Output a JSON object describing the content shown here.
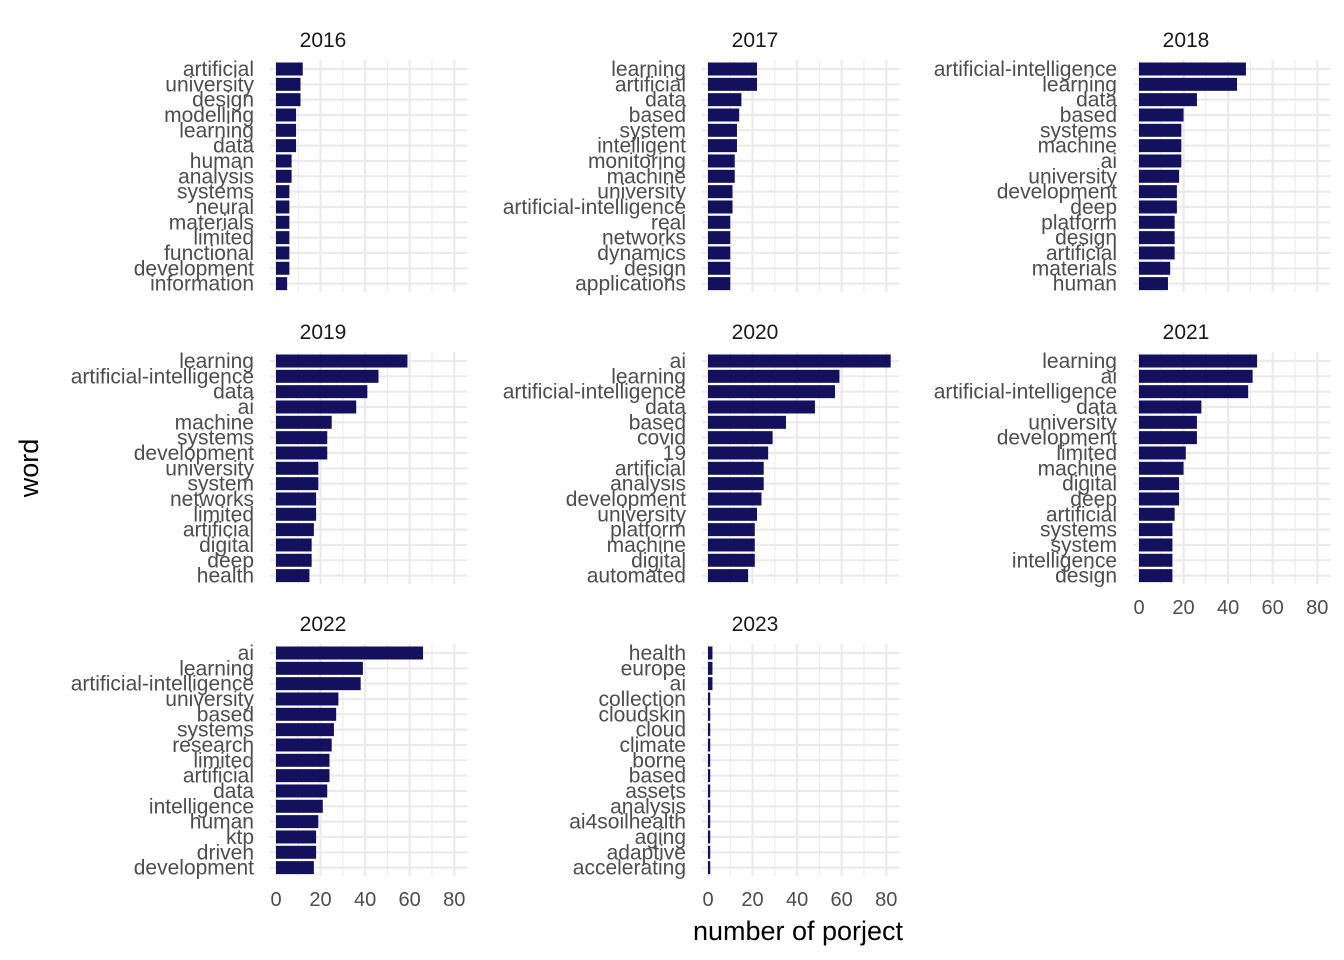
{
  "chart_data": {
    "type": "bar",
    "orientation": "horizontal",
    "xlabel": "number of porject",
    "ylabel": "word",
    "xlim": [
      0,
      85
    ],
    "x_ticks": [
      0,
      20,
      40,
      60,
      80
    ],
    "x_tick_labels": [
      "0",
      "20",
      "40",
      "60",
      "80"
    ],
    "bar_color": "#13105e",
    "grid": true,
    "facets": [
      {
        "title": "2016",
        "categories": [
          "artificial",
          "university",
          "design",
          "modelling",
          "learning",
          "data",
          "human",
          "analysis",
          "systems",
          "neural",
          "materials",
          "limited",
          "functional",
          "development",
          "information"
        ],
        "values": [
          12,
          11,
          11,
          9,
          9,
          9,
          7,
          7,
          6,
          6,
          6,
          6,
          6,
          6,
          5
        ]
      },
      {
        "title": "2017",
        "categories": [
          "learning",
          "artificial",
          "data",
          "based",
          "system",
          "intelligent",
          "monitoring",
          "machine",
          "university",
          "artificial-intelligence",
          "real",
          "networks",
          "dynamics",
          "design",
          "applications"
        ],
        "values": [
          22,
          22,
          15,
          14,
          13,
          13,
          12,
          12,
          11,
          11,
          10,
          10,
          10,
          10,
          10
        ]
      },
      {
        "title": "2018",
        "categories": [
          "artificial-intelligence",
          "learning",
          "data",
          "based",
          "systems",
          "machine",
          "ai",
          "university",
          "development",
          "deep",
          "platform",
          "design",
          "artificial",
          "materials",
          "human"
        ],
        "values": [
          48,
          44,
          26,
          20,
          19,
          19,
          19,
          18,
          17,
          17,
          16,
          16,
          16,
          14,
          13
        ]
      },
      {
        "title": "2019",
        "categories": [
          "learning",
          "artificial-intelligence",
          "data",
          "ai",
          "machine",
          "systems",
          "development",
          "university",
          "system",
          "networks",
          "limited",
          "artificial",
          "digital",
          "deep",
          "health"
        ],
        "values": [
          59,
          46,
          41,
          36,
          25,
          23,
          23,
          19,
          19,
          18,
          18,
          17,
          16,
          16,
          15
        ]
      },
      {
        "title": "2020",
        "categories": [
          "ai",
          "learning",
          "artificial-intelligence",
          "data",
          "based",
          "covid",
          "19",
          "artificial",
          "analysis",
          "development",
          "university",
          "platform",
          "machine",
          "digital",
          "automated"
        ],
        "values": [
          82,
          59,
          57,
          48,
          35,
          29,
          27,
          25,
          25,
          24,
          22,
          21,
          21,
          21,
          18
        ]
      },
      {
        "title": "2021",
        "categories": [
          "learning",
          "ai",
          "artificial-intelligence",
          "data",
          "university",
          "development",
          "limited",
          "machine",
          "digital",
          "deep",
          "artificial",
          "systems",
          "system",
          "intelligence",
          "design"
        ],
        "values": [
          53,
          51,
          49,
          28,
          26,
          26,
          21,
          20,
          18,
          18,
          16,
          15,
          15,
          15,
          15
        ]
      },
      {
        "title": "2022",
        "categories": [
          "ai",
          "learning",
          "artificial-intelligence",
          "university",
          "based",
          "systems",
          "research",
          "limited",
          "artificial",
          "data",
          "intelligence",
          "human",
          "ktp",
          "driven",
          "development"
        ],
        "values": [
          66,
          39,
          38,
          28,
          27,
          26,
          25,
          24,
          24,
          23,
          21,
          19,
          18,
          18,
          17
        ]
      },
      {
        "title": "2023",
        "categories": [
          "health",
          "europe",
          "ai",
          "collection",
          "cloudskin",
          "cloud",
          "climate",
          "borne",
          "based",
          "assets",
          "analysis",
          "ai4soilhealth",
          "aging",
          "adaptive",
          "accelerating"
        ],
        "values": [
          2,
          2,
          2,
          1,
          1,
          1,
          1,
          1,
          1,
          1,
          1,
          1,
          1,
          1,
          1
        ]
      }
    ]
  }
}
